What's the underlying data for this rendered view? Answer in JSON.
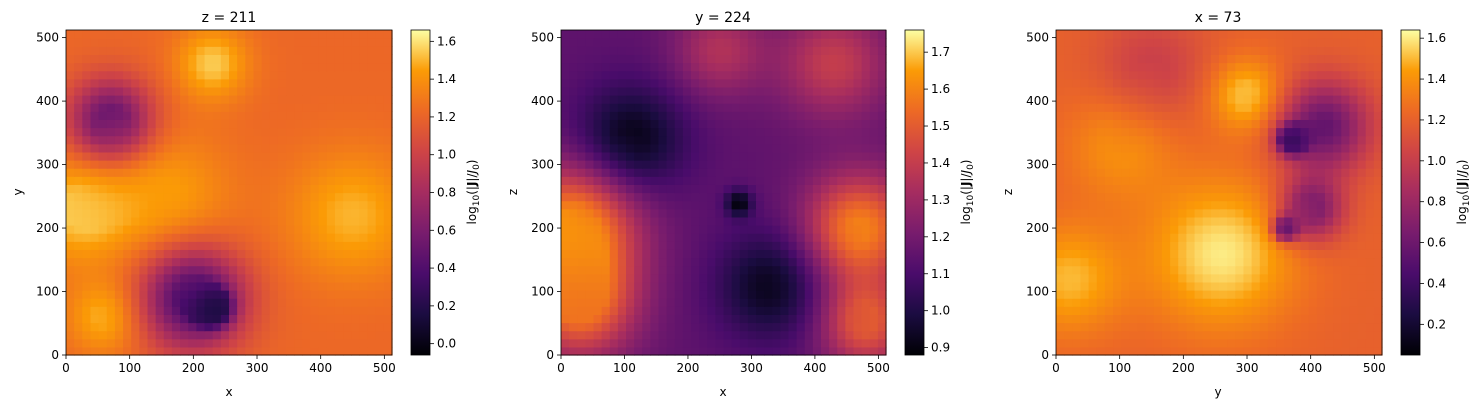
{
  "figure": {
    "panels": [
      {
        "title": "z = 211",
        "xlabel": "x",
        "ylabel": "y"
      },
      {
        "title": "y = 224",
        "xlabel": "x",
        "ylabel": "z"
      },
      {
        "title": "x = 73",
        "xlabel": "y",
        "ylabel": "z"
      }
    ]
  },
  "chart_data": [
    {
      "type": "heatmap",
      "title": "z = 211",
      "xlabel": "x",
      "ylabel": "y",
      "xlim": [
        0,
        512
      ],
      "ylim": [
        0,
        512
      ],
      "x_ticks": [
        0,
        100,
        200,
        300,
        400,
        500
      ],
      "y_ticks": [
        0,
        100,
        200,
        300,
        400,
        500
      ],
      "colormap": "inferno",
      "colorbar_label": "log10(|J|/J0)",
      "colorbar_range": [
        -0.06,
        1.66
      ],
      "colorbar_ticks": [
        "0.0",
        "0.2",
        "0.4",
        "0.6",
        "0.8",
        "1.0",
        "1.2",
        "1.4",
        "1.6"
      ],
      "background_level": 1.22,
      "features": [
        {
          "x": 70,
          "y": 370,
          "radius": 45,
          "value": 0.45
        },
        {
          "x": 200,
          "y": 90,
          "radius": 55,
          "value": 0.3
        },
        {
          "x": 230,
          "y": 75,
          "radius": 18,
          "value": 0.05
        },
        {
          "x": 20,
          "y": 230,
          "radius": 60,
          "value": 1.55
        },
        {
          "x": 230,
          "y": 460,
          "radius": 40,
          "value": 1.55
        },
        {
          "x": 160,
          "y": 250,
          "radius": 70,
          "value": 1.45
        },
        {
          "x": 450,
          "y": 220,
          "radius": 70,
          "value": 1.5
        },
        {
          "x": 60,
          "y": 60,
          "radius": 40,
          "value": 1.5
        }
      ]
    },
    {
      "type": "heatmap",
      "title": "y = 224",
      "xlabel": "x",
      "ylabel": "z",
      "xlim": [
        0,
        512
      ],
      "ylim": [
        0,
        512
      ],
      "x_ticks": [
        0,
        100,
        200,
        300,
        400,
        500
      ],
      "y_ticks": [
        0,
        100,
        200,
        300,
        400,
        500
      ],
      "colormap": "inferno",
      "colorbar_label": "log10(|J|/J0)",
      "colorbar_range": [
        0.88,
        1.76
      ],
      "colorbar_ticks": [
        "0.9",
        "1.0",
        "1.1",
        "1.2",
        "1.3",
        "1.4",
        "1.5",
        "1.6",
        "1.7"
      ],
      "background_level": 1.15,
      "features": [
        {
          "x": 110,
          "y": 340,
          "radius": 60,
          "value": 0.9
        },
        {
          "x": 330,
          "y": 110,
          "radius": 60,
          "value": 0.92
        },
        {
          "x": 280,
          "y": 240,
          "radius": 15,
          "value": 0.9
        },
        {
          "x": 20,
          "y": 200,
          "radius": 70,
          "value": 1.65
        },
        {
          "x": 30,
          "y": 80,
          "radius": 60,
          "value": 1.55
        },
        {
          "x": 470,
          "y": 200,
          "radius": 60,
          "value": 1.6
        },
        {
          "x": 430,
          "y": 460,
          "radius": 60,
          "value": 1.4
        },
        {
          "x": 250,
          "y": 480,
          "radius": 50,
          "value": 1.35
        },
        {
          "x": 480,
          "y": 50,
          "radius": 50,
          "value": 1.5
        }
      ]
    },
    {
      "type": "heatmap",
      "title": "x = 73",
      "xlabel": "y",
      "ylabel": "z",
      "xlim": [
        0,
        512
      ],
      "ylim": [
        0,
        512
      ],
      "x_ticks": [
        0,
        100,
        200,
        300,
        400,
        500
      ],
      "y_ticks": [
        0,
        100,
        200,
        300,
        400,
        500
      ],
      "colormap": "inferno",
      "colorbar_label": "log10(|J|/J0)",
      "colorbar_range": [
        0.05,
        1.64
      ],
      "colorbar_ticks": [
        "0.2",
        "0.4",
        "0.6",
        "0.8",
        "1.0",
        "1.2",
        "1.4",
        "1.6"
      ],
      "background_level": 1.2,
      "features": [
        {
          "x": 260,
          "y": 160,
          "radius": 80,
          "value": 1.6
        },
        {
          "x": 20,
          "y": 120,
          "radius": 60,
          "value": 1.5
        },
        {
          "x": 100,
          "y": 330,
          "radius": 60,
          "value": 1.4
        },
        {
          "x": 420,
          "y": 360,
          "radius": 50,
          "value": 0.55
        },
        {
          "x": 370,
          "y": 340,
          "radius": 15,
          "value": 0.2
        },
        {
          "x": 400,
          "y": 230,
          "radius": 35,
          "value": 0.6
        },
        {
          "x": 360,
          "y": 200,
          "radius": 12,
          "value": 0.15
        },
        {
          "x": 150,
          "y": 450,
          "radius": 60,
          "value": 1.0
        },
        {
          "x": 300,
          "y": 410,
          "radius": 40,
          "value": 1.55
        }
      ]
    }
  ]
}
